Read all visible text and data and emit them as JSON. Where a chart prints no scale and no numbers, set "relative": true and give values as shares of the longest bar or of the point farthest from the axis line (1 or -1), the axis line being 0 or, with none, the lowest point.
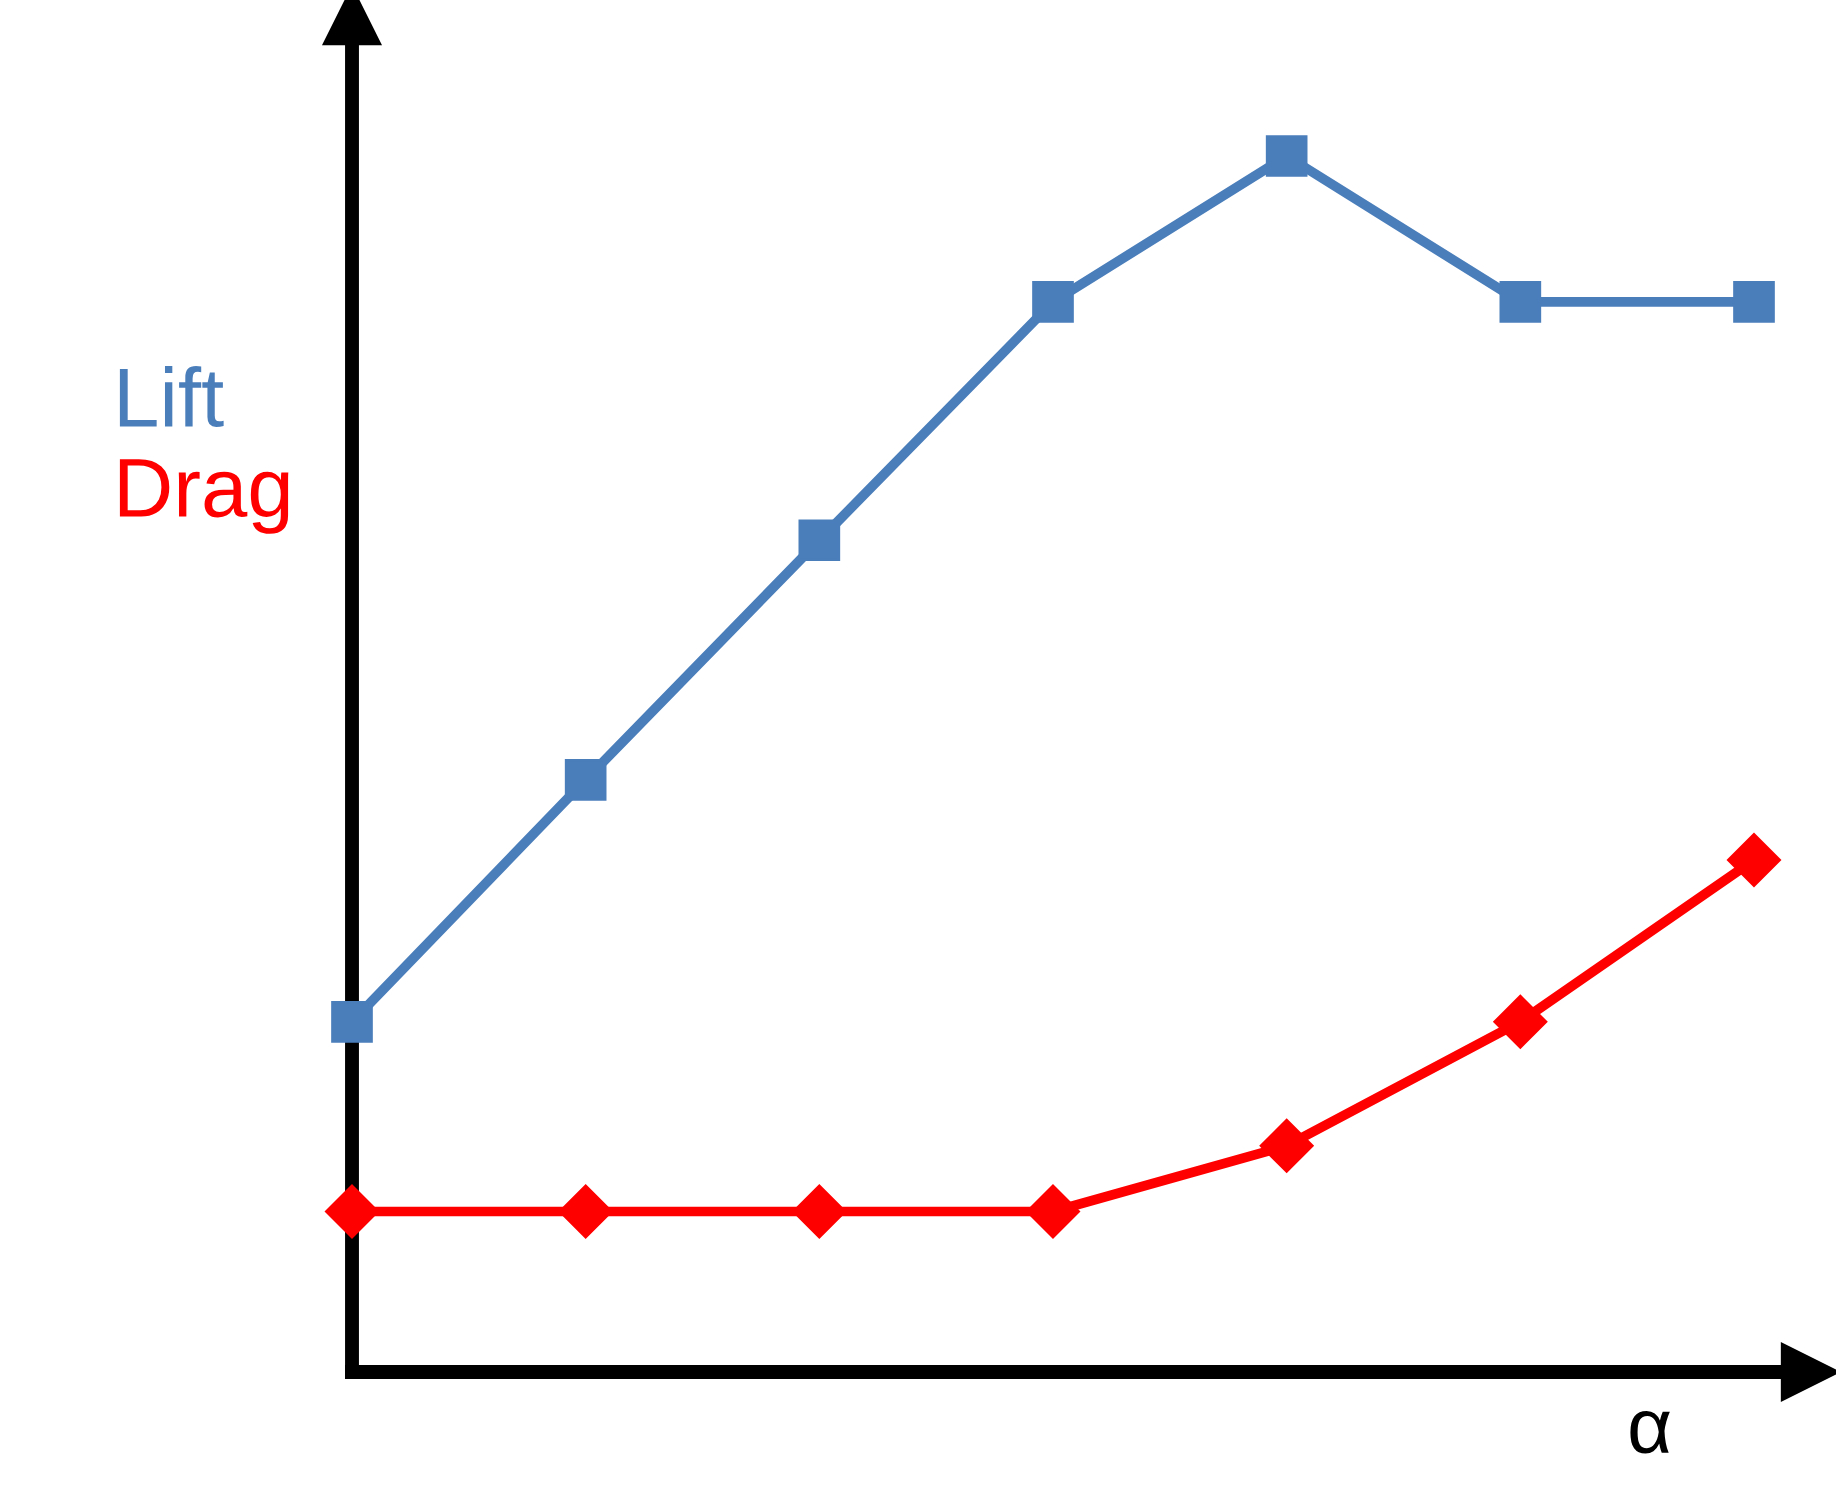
{
  "chart_data": {
    "type": "line",
    "relative": true,
    "xlabel": "α",
    "categories": [
      null,
      null,
      null,
      null,
      null,
      null,
      null
    ],
    "series": [
      {
        "name": "Lift",
        "color": "#4a7ebb",
        "marker": "square",
        "values": [
          0.288,
          0.487,
          0.684,
          0.88,
          1,
          0.88,
          0.88
        ]
      },
      {
        "name": "Drag",
        "color": "#ff0000",
        "marker": "diamond",
        "values": [
          0.132,
          0.132,
          0.132,
          0.132,
          0.186,
          0.288,
          0.421
        ]
      }
    ],
    "legend": "left",
    "grid": false,
    "line_style": "solid"
  }
}
